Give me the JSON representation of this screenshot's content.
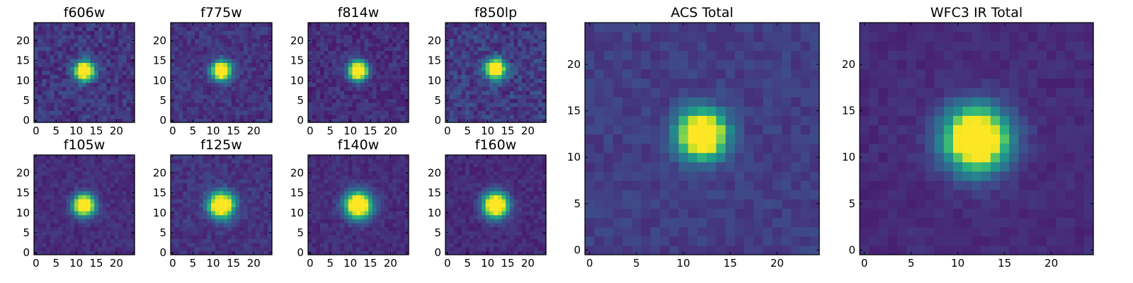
{
  "chart_data": [
    {
      "type": "heatmap",
      "title": "f606w",
      "colormap": "viridis",
      "grid": false,
      "shape": [
        25,
        25
      ],
      "xlim": [
        -0.5,
        24.5
      ],
      "ylim": [
        -0.5,
        24.5
      ],
      "xticks": [
        "0",
        "5",
        "10",
        "15",
        "20"
      ],
      "yticks": [
        "0",
        "5",
        "10",
        "15",
        "20"
      ],
      "peak": {
        "x": 12,
        "y": 12.5
      },
      "sigma": 1.6,
      "background": 0.16,
      "noise": 0.09
    },
    {
      "type": "heatmap",
      "title": "f775w",
      "colormap": "viridis",
      "grid": false,
      "shape": [
        25,
        25
      ],
      "xlim": [
        -0.5,
        24.5
      ],
      "ylim": [
        -0.5,
        24.5
      ],
      "xticks": [
        "0",
        "5",
        "10",
        "15",
        "20"
      ],
      "yticks": [
        "0",
        "5",
        "10",
        "15",
        "20"
      ],
      "peak": {
        "x": 12,
        "y": 12.5
      },
      "sigma": 1.6,
      "background": 0.15,
      "noise": 0.07
    },
    {
      "type": "heatmap",
      "title": "f814w",
      "colormap": "viridis",
      "grid": false,
      "shape": [
        25,
        25
      ],
      "xlim": [
        -0.5,
        24.5
      ],
      "ylim": [
        -0.5,
        24.5
      ],
      "xticks": [
        "0",
        "5",
        "10",
        "15",
        "20"
      ],
      "yticks": [
        "0",
        "5",
        "10",
        "15",
        "20"
      ],
      "peak": {
        "x": 12,
        "y": 12.5
      },
      "sigma": 1.6,
      "background": 0.13,
      "noise": 0.07
    },
    {
      "type": "heatmap",
      "title": "f850lp",
      "colormap": "viridis",
      "grid": false,
      "shape": [
        25,
        25
      ],
      "xlim": [
        -0.5,
        24.5
      ],
      "ylim": [
        -0.5,
        24.5
      ],
      "xticks": [
        "0",
        "5",
        "10",
        "15",
        "20"
      ],
      "yticks": [
        "0",
        "5",
        "10",
        "15",
        "20"
      ],
      "peak": {
        "x": 12,
        "y": 13
      },
      "sigma": 1.6,
      "background": 0.18,
      "noise": 0.1
    },
    {
      "type": "heatmap",
      "title": "f105w",
      "colormap": "viridis",
      "grid": false,
      "shape": [
        25,
        25
      ],
      "xlim": [
        -0.5,
        24.5
      ],
      "ylim": [
        -0.5,
        24.5
      ],
      "xticks": [
        "0",
        "5",
        "10",
        "15",
        "20"
      ],
      "yticks": [
        "0",
        "5",
        "10",
        "15",
        "20"
      ],
      "peak": {
        "x": 12,
        "y": 12
      },
      "sigma": 1.8,
      "background": 0.13,
      "noise": 0.05
    },
    {
      "type": "heatmap",
      "title": "f125w",
      "colormap": "viridis",
      "grid": false,
      "shape": [
        25,
        25
      ],
      "xlim": [
        -0.5,
        24.5
      ],
      "ylim": [
        -0.5,
        24.5
      ],
      "xticks": [
        "0",
        "5",
        "10",
        "15",
        "20"
      ],
      "yticks": [
        "0",
        "5",
        "10",
        "15",
        "20"
      ],
      "peak": {
        "x": 12,
        "y": 12
      },
      "sigma": 2.1,
      "background": 0.15,
      "noise": 0.06
    },
    {
      "type": "heatmap",
      "title": "f140w",
      "colormap": "viridis",
      "grid": false,
      "shape": [
        25,
        25
      ],
      "xlim": [
        -0.5,
        24.5
      ],
      "ylim": [
        -0.5,
        24.5
      ],
      "xticks": [
        "0",
        "5",
        "10",
        "15",
        "20"
      ],
      "yticks": [
        "0",
        "5",
        "10",
        "15",
        "20"
      ],
      "peak": {
        "x": 12,
        "y": 12
      },
      "sigma": 2.2,
      "background": 0.13,
      "noise": 0.05
    },
    {
      "type": "heatmap",
      "title": "f160w",
      "colormap": "viridis",
      "grid": false,
      "shape": [
        25,
        25
      ],
      "xlim": [
        -0.5,
        24.5
      ],
      "ylim": [
        -0.5,
        24.5
      ],
      "xticks": [
        "0",
        "5",
        "10",
        "15",
        "20"
      ],
      "yticks": [
        "0",
        "5",
        "10",
        "15",
        "20"
      ],
      "peak": {
        "x": 12,
        "y": 12
      },
      "sigma": 2.1,
      "background": 0.12,
      "noise": 0.05
    },
    {
      "type": "heatmap",
      "title": "ACS Total",
      "colormap": "viridis",
      "grid": false,
      "shape": [
        25,
        25
      ],
      "xlim": [
        -0.5,
        24.5
      ],
      "ylim": [
        -0.5,
        24.5
      ],
      "xticks": [
        "0",
        "5",
        "10",
        "15",
        "20"
      ],
      "yticks": [
        "0",
        "5",
        "10",
        "15",
        "20"
      ],
      "peak": {
        "x": 12,
        "y": 12.5
      },
      "sigma": 1.7,
      "background": 0.18,
      "noise": 0.05
    },
    {
      "type": "heatmap",
      "title": "WFC3 IR Total",
      "colormap": "viridis",
      "grid": false,
      "shape": [
        25,
        25
      ],
      "xlim": [
        -0.5,
        24.5
      ],
      "ylim": [
        -0.5,
        24.5
      ],
      "xticks": [
        "0",
        "5",
        "10",
        "15",
        "20"
      ],
      "yticks": [
        "0",
        "5",
        "10",
        "15",
        "20"
      ],
      "peak": {
        "x": 12,
        "y": 12
      },
      "sigma": 2.3,
      "background": 0.12,
      "noise": 0.035
    }
  ]
}
